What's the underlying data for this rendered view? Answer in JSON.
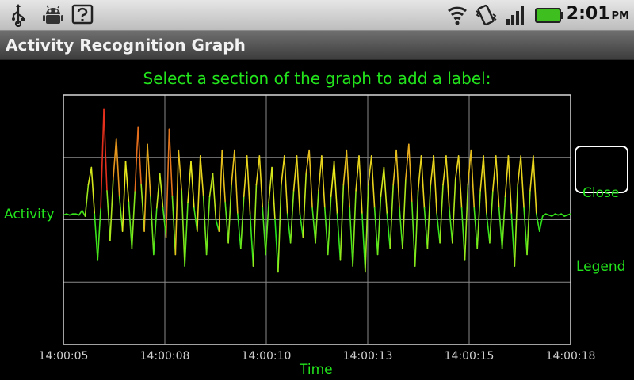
{
  "status_bar": {
    "time": "2:01",
    "ampm": "PM",
    "left_icons": [
      "usb-icon",
      "android-debug-icon",
      "help-icon"
    ],
    "right_icons": [
      "wifi-icon",
      "vibrate-icon",
      "signal-icon",
      "battery-icon"
    ],
    "battery_color": "#3fbf1f"
  },
  "title_bar": {
    "title": "Activity Recognition Graph"
  },
  "main": {
    "prompt": "Select a section of the graph to add a label:",
    "close_label": "Close",
    "legend_label": "Legend"
  },
  "chart_data": {
    "type": "line",
    "title": "",
    "xlabel": "Time",
    "ylabel": "Activity",
    "x_ticks": [
      "14:00:05",
      "14:00:08",
      "14:00:10",
      "14:00:13",
      "14:00:15",
      "14:00:18"
    ],
    "grid": true,
    "color_scale": [
      "#22e31c",
      "#e8e81c",
      "#e31c1c"
    ],
    "series": [
      {
        "values": [
          0.04,
          0.05,
          0.04,
          0.05,
          0.05,
          0.04,
          0.08,
          0.03,
          0.3,
          0.45,
          0.05,
          -0.35,
          0.1,
          0.95,
          0.25,
          -0.18,
          0.35,
          0.7,
          0.2,
          -0.1,
          0.5,
          0.15,
          -0.25,
          0.25,
          0.8,
          0.3,
          -0.1,
          0.65,
          0.2,
          -0.3,
          0.1,
          0.4,
          0.1,
          -0.15,
          0.78,
          0.2,
          -0.3,
          0.6,
          0.25,
          -0.4,
          0.15,
          0.5,
          0.1,
          -0.1,
          0.55,
          0.2,
          -0.3,
          0.2,
          0.4,
          0.0,
          -0.1,
          0.6,
          0.15,
          -0.2,
          0.3,
          0.6,
          0.05,
          -0.25,
          0.2,
          0.55,
          0.05,
          -0.4,
          0.3,
          0.55,
          0.1,
          -0.3,
          0.15,
          0.45,
          0.0,
          -0.45,
          0.3,
          0.55,
          0.05,
          -0.2,
          0.25,
          0.55,
          0.05,
          -0.15,
          0.4,
          0.6,
          0.1,
          -0.2,
          0.25,
          0.55,
          0.1,
          -0.3,
          0.2,
          0.5,
          0.05,
          -0.35,
          0.3,
          0.6,
          0.1,
          -0.4,
          0.25,
          0.55,
          0.05,
          -0.45,
          0.3,
          0.55,
          0.1,
          -0.3,
          0.2,
          0.45,
          0.05,
          -0.25,
          0.3,
          0.6,
          0.1,
          -0.25,
          0.35,
          0.65,
          0.15,
          -0.4,
          0.25,
          0.55,
          0.1,
          -0.25,
          0.3,
          0.55,
          0.05,
          -0.2,
          0.3,
          0.55,
          0.1,
          -0.2,
          0.35,
          0.55,
          0.1,
          -0.35,
          0.3,
          0.6,
          0.1,
          -0.25,
          0.25,
          0.55,
          0.05,
          -0.2,
          0.25,
          0.55,
          0.1,
          -0.25,
          0.2,
          0.55,
          0.05,
          -0.4,
          0.3,
          0.55,
          0.1,
          -0.3,
          0.25,
          0.55,
          0.05,
          -0.1,
          0.03,
          0.05,
          0.04,
          0.03,
          0.05,
          0.04,
          0.05,
          0.03,
          0.04,
          0.05
        ]
      }
    ]
  }
}
